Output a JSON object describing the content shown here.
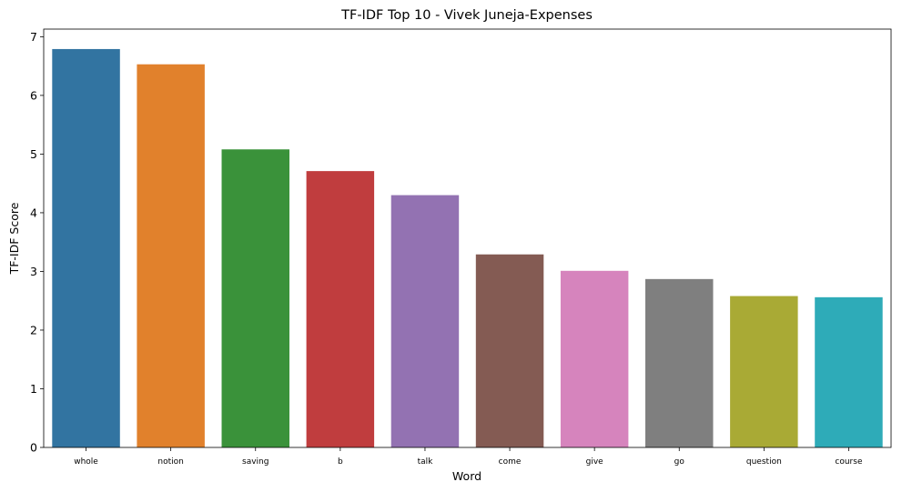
{
  "chart_data": {
    "type": "bar",
    "title": "TF-IDF Top 10 - Vivek Juneja-Expenses",
    "xlabel": "Word",
    "ylabel": "TF-IDF Score",
    "categories": [
      "whole",
      "notion",
      "saving",
      "b",
      "talk",
      "come",
      "give",
      "go",
      "question",
      "course"
    ],
    "values": [
      6.79,
      6.53,
      5.08,
      4.71,
      4.3,
      3.29,
      3.01,
      2.87,
      2.58,
      2.56
    ],
    "colors": [
      "#3274a1",
      "#e1812c",
      "#3a923a",
      "#c03d3e",
      "#9372b2",
      "#845b53",
      "#d684bd",
      "#7f7f7f",
      "#a9aa35",
      "#2eabb8"
    ],
    "ylim": [
      0,
      7.13
    ],
    "yticks": [
      "0",
      "1",
      "2",
      "3",
      "4",
      "5",
      "6",
      "7"
    ],
    "grid": false,
    "legend": "none"
  }
}
